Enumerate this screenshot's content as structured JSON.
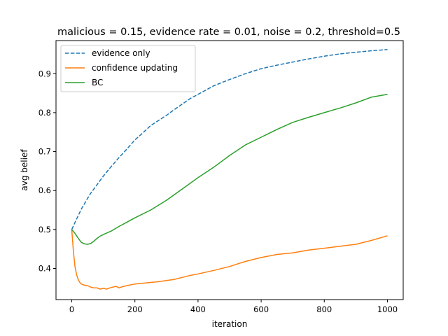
{
  "chart_data": {
    "type": "line",
    "title": "malicious = 0.15, evidence rate = 0.01, noise = 0.2, threshold=0.5",
    "xlabel": "iteration",
    "ylabel": "avg belief",
    "xlim": [
      -50,
      1050
    ],
    "ylim": [
      0.32,
      0.985
    ],
    "xticks": [
      0,
      200,
      400,
      600,
      800,
      1000
    ],
    "yticks": [
      0.4,
      0.5,
      0.6,
      0.7,
      0.8,
      0.9
    ],
    "ytick_labels": [
      "0.4",
      "0.5",
      "0.6",
      "0.7",
      "0.8",
      "0.9"
    ],
    "grid": false,
    "legend_position": "top-left",
    "series": [
      {
        "name": "evidence only",
        "color": "#1f77b4",
        "style": "dashed",
        "x": [
          0,
          10,
          20,
          30,
          40,
          50,
          60,
          80,
          100,
          120,
          150,
          175,
          200,
          225,
          250,
          275,
          300,
          325,
          350,
          375,
          400,
          450,
          500,
          550,
          600,
          650,
          700,
          750,
          800,
          850,
          900,
          950,
          1000
        ],
        "y": [
          0.5,
          0.518,
          0.535,
          0.552,
          0.566,
          0.58,
          0.593,
          0.615,
          0.637,
          0.657,
          0.685,
          0.707,
          0.73,
          0.748,
          0.767,
          0.78,
          0.793,
          0.808,
          0.822,
          0.836,
          0.847,
          0.869,
          0.885,
          0.9,
          0.913,
          0.922,
          0.93,
          0.938,
          0.945,
          0.951,
          0.955,
          0.959,
          0.962
        ]
      },
      {
        "name": "confidence updating",
        "color": "#ff7f0e",
        "style": "solid",
        "x": [
          0,
          5,
          10,
          15,
          20,
          25,
          30,
          40,
          50,
          60,
          70,
          80,
          90,
          100,
          110,
          120,
          130,
          140,
          150,
          160,
          175,
          200,
          225,
          250,
          275,
          300,
          325,
          350,
          375,
          400,
          450,
          500,
          550,
          600,
          650,
          700,
          750,
          800,
          850,
          900,
          950,
          1000
        ],
        "y": [
          0.5,
          0.445,
          0.405,
          0.385,
          0.372,
          0.365,
          0.36,
          0.357,
          0.356,
          0.352,
          0.35,
          0.35,
          0.347,
          0.349,
          0.347,
          0.35,
          0.352,
          0.354,
          0.35,
          0.353,
          0.356,
          0.36,
          0.362,
          0.364,
          0.366,
          0.369,
          0.372,
          0.377,
          0.382,
          0.386,
          0.395,
          0.405,
          0.418,
          0.428,
          0.436,
          0.44,
          0.447,
          0.452,
          0.457,
          0.462,
          0.472,
          0.484
        ]
      },
      {
        "name": "BC",
        "color": "#2ca02c",
        "style": "solid",
        "x": [
          0,
          10,
          20,
          30,
          40,
          50,
          60,
          70,
          80,
          90,
          100,
          125,
          150,
          175,
          200,
          250,
          300,
          350,
          400,
          450,
          500,
          550,
          600,
          650,
          700,
          750,
          800,
          850,
          900,
          950,
          1000
        ],
        "y": [
          0.5,
          0.49,
          0.478,
          0.467,
          0.463,
          0.462,
          0.464,
          0.47,
          0.477,
          0.483,
          0.487,
          0.496,
          0.508,
          0.519,
          0.53,
          0.55,
          0.575,
          0.604,
          0.633,
          0.66,
          0.69,
          0.717,
          0.737,
          0.757,
          0.775,
          0.788,
          0.8,
          0.812,
          0.825,
          0.84,
          0.847
        ]
      }
    ]
  }
}
